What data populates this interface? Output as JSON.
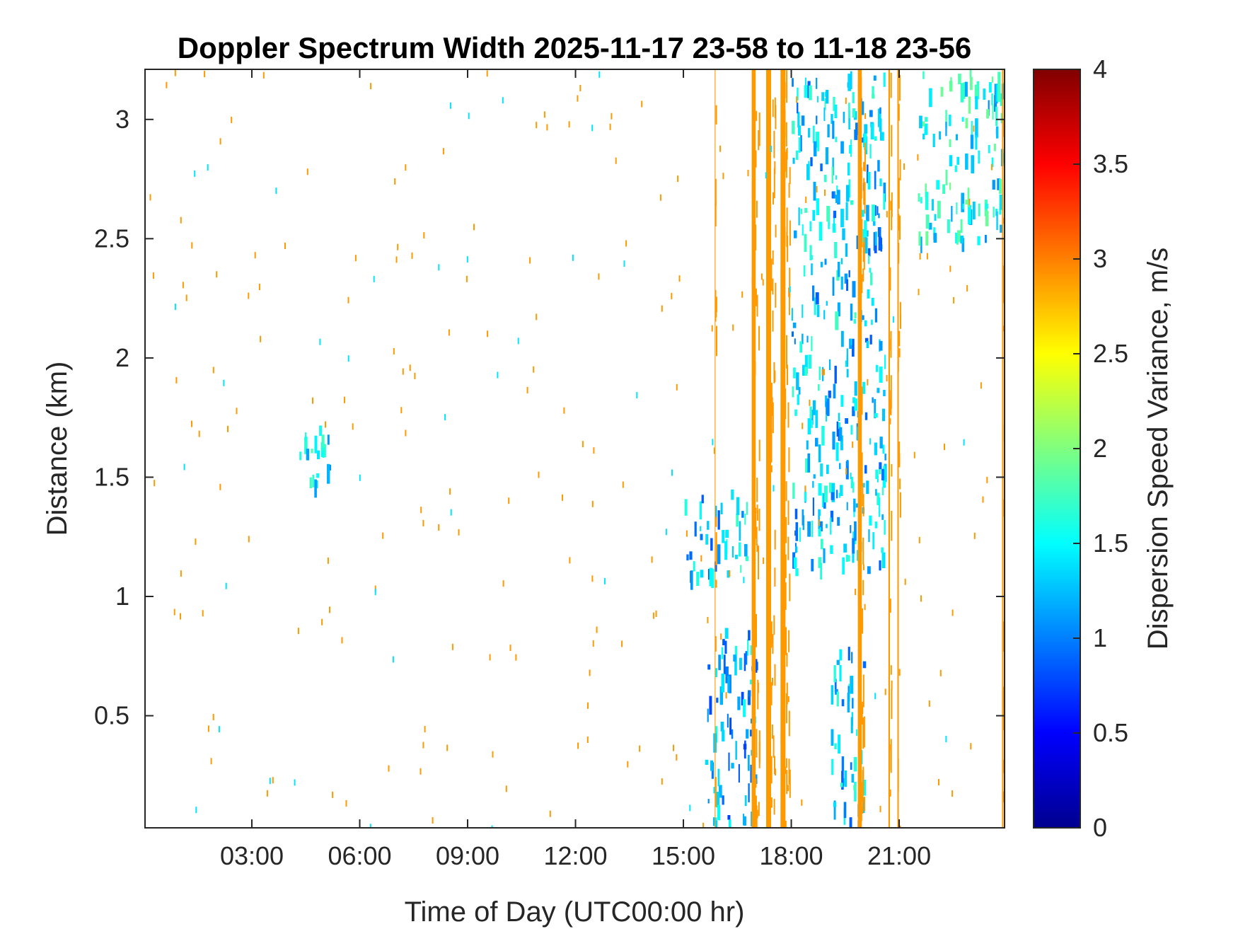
{
  "chart_data": {
    "type": "heatmap",
    "title": "Doppler Spectrum Width 2025-11-17 23-58 to 11-18 23-56",
    "xlabel": "Time of Day (UTC00:00 hr)",
    "ylabel": "Distance (km)",
    "colorbar_label": "Dispersion Speed Variance, m/s",
    "x_range_hours": [
      0.03,
      23.93
    ],
    "y_range_km": [
      0.03,
      3.21
    ],
    "c_range": [
      0,
      4
    ],
    "colormap": "jet",
    "x_ticks": [
      {
        "value": 3,
        "label": "03:00"
      },
      {
        "value": 6,
        "label": "06:00"
      },
      {
        "value": 9,
        "label": "09:00"
      },
      {
        "value": 12,
        "label": "12:00"
      },
      {
        "value": 15,
        "label": "15:00"
      },
      {
        "value": 18,
        "label": "18:00"
      },
      {
        "value": 21,
        "label": "21:00"
      }
    ],
    "y_ticks": [
      {
        "value": 0.5,
        "label": "0.5"
      },
      {
        "value": 1,
        "label": "1"
      },
      {
        "value": 1.5,
        "label": "1.5"
      },
      {
        "value": 2,
        "label": "2"
      },
      {
        "value": 2.5,
        "label": "2.5"
      },
      {
        "value": 3,
        "label": "3"
      }
    ],
    "c_ticks": [
      {
        "value": 0,
        "label": "0"
      },
      {
        "value": 0.5,
        "label": "0.5"
      },
      {
        "value": 1,
        "label": "1"
      },
      {
        "value": 1.5,
        "label": "1.5"
      },
      {
        "value": 2,
        "label": "2"
      },
      {
        "value": 2.5,
        "label": "2.5"
      },
      {
        "value": 3,
        "label": "3"
      },
      {
        "value": 3.5,
        "label": "3.5"
      },
      {
        "value": 4,
        "label": "4"
      }
    ],
    "orange_bands": [
      {
        "x0": 15.87,
        "x1": 15.9,
        "y0": 0.03,
        "y1": 3.21,
        "value": 2.9
      },
      {
        "x0": 16.9,
        "x1": 17.1,
        "y0": 0.03,
        "y1": 3.21,
        "value": 2.9
      },
      {
        "x0": 17.3,
        "x1": 17.55,
        "y0": 0.03,
        "y1": 3.21,
        "value": 2.9
      },
      {
        "x0": 17.7,
        "x1": 17.95,
        "y0": 0.03,
        "y1": 3.21,
        "value": 2.9
      },
      {
        "x0": 19.85,
        "x1": 20.05,
        "y0": 0.03,
        "y1": 3.21,
        "value": 2.9
      },
      {
        "x0": 20.7,
        "x1": 20.78,
        "y0": 0.03,
        "y1": 3.21,
        "value": 2.9
      },
      {
        "x0": 20.95,
        "x1": 21.02,
        "y0": 0.03,
        "y1": 3.21,
        "value": 2.9
      },
      {
        "x0": 23.86,
        "x1": 23.93,
        "y0": 0.03,
        "y1": 3.21,
        "value": 2.9
      }
    ],
    "echo_regions": [
      {
        "name": "isolated cell ~04:45",
        "x0": 4.2,
        "x1": 5.3,
        "y0": 1.48,
        "y1": 1.72,
        "value": 1.4
      },
      {
        "name": "upper cloud layer 18:00-20:30",
        "x0": 18.0,
        "x1": 20.6,
        "y0": 1.1,
        "y1": 3.21,
        "value": 1.3
      },
      {
        "name": "lower echo 19:00-20:00",
        "x0": 19.1,
        "x1": 20.0,
        "y0": 0.03,
        "y1": 0.8,
        "value": 1.3
      },
      {
        "name": "upper cloud 21:30-23:55",
        "x0": 21.5,
        "x1": 23.9,
        "y0": 2.5,
        "y1": 3.21,
        "value": 1.5
      },
      {
        "name": "scattered echo ~15:45-16:45",
        "x0": 15.0,
        "x1": 16.8,
        "y0": 1.1,
        "y1": 1.45,
        "value": 1.3
      },
      {
        "name": "near-surface echo 15:40-17:00",
        "x0": 15.6,
        "x1": 17.0,
        "y0": 0.03,
        "y1": 0.9,
        "value": 1.2
      }
    ]
  }
}
